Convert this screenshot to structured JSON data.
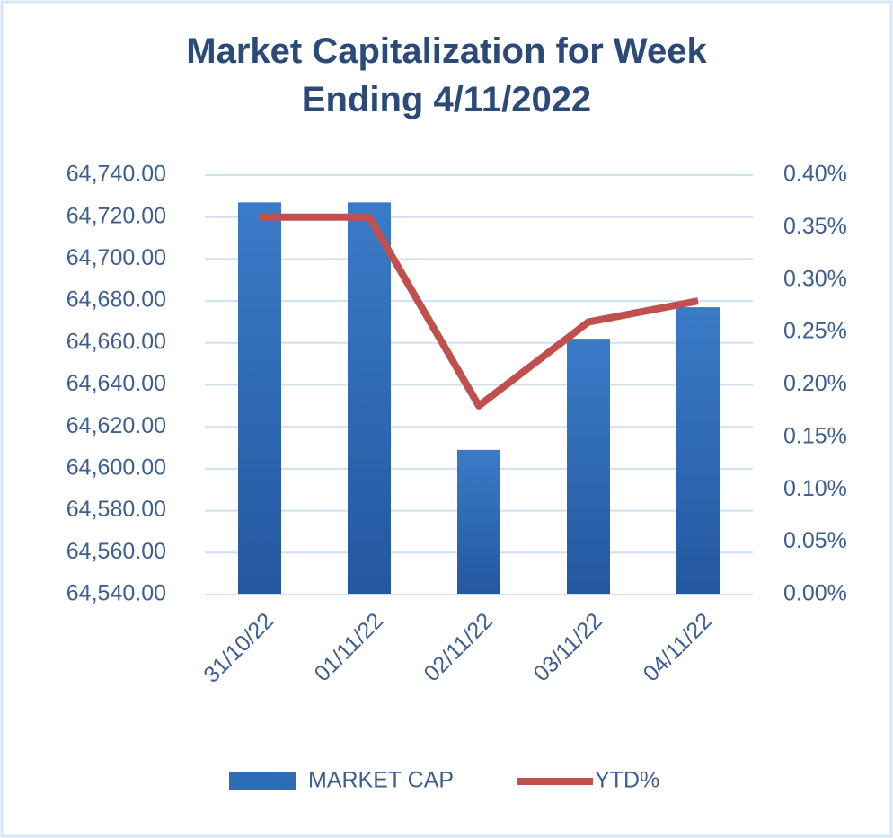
{
  "chart_data": {
    "type": "bar",
    "title": "Market Capitalization for Week Ending 4/11/2022",
    "categories": [
      "31/10/22",
      "01/11/22",
      "02/11/22",
      "03/11/22",
      "04/11/22"
    ],
    "series": [
      {
        "name": "MARKET CAP",
        "type": "bar",
        "color": "#2e6db5",
        "values": [
          64727,
          64727,
          64609,
          64662,
          64677
        ]
      },
      {
        "name": "YTD%",
        "type": "line",
        "axis": "y2",
        "color": "#c0504d",
        "values": [
          0.36,
          0.36,
          0.18,
          0.26,
          0.28
        ]
      }
    ],
    "ylim": [
      64540,
      64740
    ],
    "yticks": [
      {
        "value": 64540,
        "label": "64,540.00"
      },
      {
        "value": 64560,
        "label": "64,560.00"
      },
      {
        "value": 64580,
        "label": "64,580.00"
      },
      {
        "value": 64600,
        "label": "64,600.00"
      },
      {
        "value": 64620,
        "label": "64,620.00"
      },
      {
        "value": 64640,
        "label": "64,640.00"
      },
      {
        "value": 64660,
        "label": "64,660.00"
      },
      {
        "value": 64680,
        "label": "64,680.00"
      },
      {
        "value": 64700,
        "label": "64,700.00"
      },
      {
        "value": 64720,
        "label": "64,720.00"
      },
      {
        "value": 64740,
        "label": "64,740.00"
      }
    ],
    "y2lim": [
      0,
      0.4
    ],
    "y2ticks": [
      {
        "value": 0,
        "label": "0.00%"
      },
      {
        "value": 0.05,
        "label": "0.05%"
      },
      {
        "value": 0.1,
        "label": "0.10%"
      },
      {
        "value": 0.15,
        "label": "0.15%"
      },
      {
        "value": 0.2,
        "label": "0.20%"
      },
      {
        "value": 0.25,
        "label": "0.25%"
      },
      {
        "value": 0.3,
        "label": "0.30%"
      },
      {
        "value": 0.35,
        "label": "0.35%"
      },
      {
        "value": 0.4,
        "label": "0.40%"
      }
    ],
    "grid": true,
    "legend": "bottom"
  }
}
